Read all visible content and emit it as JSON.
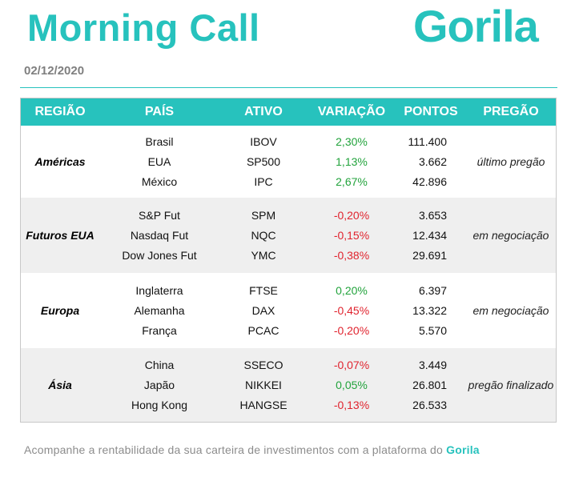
{
  "header": {
    "title": "Morning Call",
    "logo_text": "Gorila",
    "date": "02/12/2020"
  },
  "table": {
    "columns": [
      "REGIÃO",
      "PAÍS",
      "ATIVO",
      "VARIAÇÃO",
      "PONTOS",
      "PREGÃO"
    ],
    "groups": [
      {
        "region": "Américas",
        "pregao": "último pregão",
        "rows": [
          {
            "pais": "Brasil",
            "ativo": "IBOV",
            "variacao": "2,30%",
            "pontos": "111.400"
          },
          {
            "pais": "EUA",
            "ativo": "SP500",
            "variacao": "1,13%",
            "pontos": "3.662"
          },
          {
            "pais": "México",
            "ativo": "IPC",
            "variacao": "2,67%",
            "pontos": "42.896"
          }
        ]
      },
      {
        "region": "Futuros EUA",
        "pregao": "em negociação",
        "rows": [
          {
            "pais": "S&P Fut",
            "ativo": "SPM",
            "variacao": "-0,20%",
            "pontos": "3.653"
          },
          {
            "pais": "Nasdaq Fut",
            "ativo": "NQC",
            "variacao": "-0,15%",
            "pontos": "12.434"
          },
          {
            "pais": "Dow Jones Fut",
            "ativo": "YMC",
            "variacao": "-0,38%",
            "pontos": "29.691"
          }
        ]
      },
      {
        "region": "Europa",
        "pregao": "em negociação",
        "rows": [
          {
            "pais": "Inglaterra",
            "ativo": "FTSE",
            "variacao": "0,20%",
            "pontos": "6.397"
          },
          {
            "pais": "Alemanha",
            "ativo": "DAX",
            "variacao": "-0,45%",
            "pontos": "13.322"
          },
          {
            "pais": "França",
            "ativo": "PCAC",
            "variacao": "-0,20%",
            "pontos": "5.570"
          }
        ]
      },
      {
        "region": "Ásia",
        "pregao": "pregão finalizado",
        "rows": [
          {
            "pais": "China",
            "ativo": "SSECO",
            "variacao": "-0,07%",
            "pontos": "3.449"
          },
          {
            "pais": "Japão",
            "ativo": "NIKKEI",
            "variacao": "0,05%",
            "pontos": "26.801"
          },
          {
            "pais": "Hong Kong",
            "ativo": "HANGSE",
            "variacao": "-0,13%",
            "pontos": "26.533"
          }
        ]
      }
    ]
  },
  "footer": {
    "text": "Acompanhe a rentabilidade da sua carteira de investimentos com a plataforma do",
    "brand": "Gorila"
  },
  "colors": {
    "accent": "#27c2bd",
    "positive": "#22a33c",
    "negative": "#e0232e",
    "alt_row": "#efefef"
  }
}
